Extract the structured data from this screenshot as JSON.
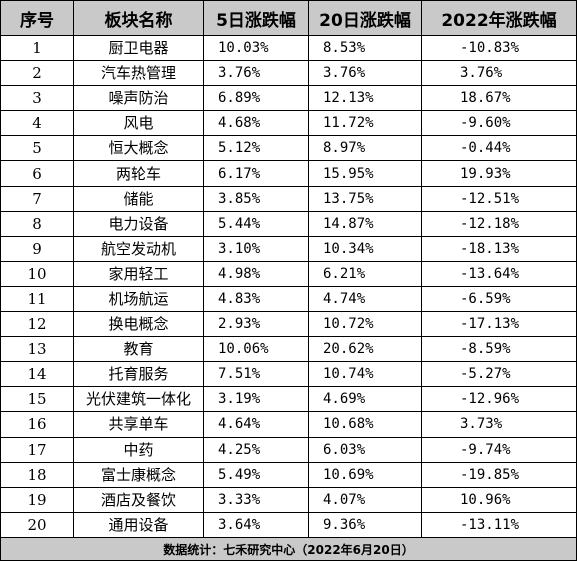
{
  "headers": [
    "序号",
    "板块名称",
    "5日涨跌幅",
    "20日涨跌幅",
    "2022年涨跌幅"
  ],
  "rows": [
    {
      "idx": "1",
      "name": "厨卫电器",
      "d5": "10.03%",
      "d20": "8.53%",
      "y2022": "-10.83%"
    },
    {
      "idx": "2",
      "name": "汽车热管理",
      "d5": "3.76%",
      "d20": "3.76%",
      "y2022": "3.76%"
    },
    {
      "idx": "3",
      "name": "噪声防治",
      "d5": "6.89%",
      "d20": "12.13%",
      "y2022": "18.67%"
    },
    {
      "idx": "4",
      "name": "风电",
      "d5": "4.68%",
      "d20": "11.72%",
      "y2022": "-9.60%"
    },
    {
      "idx": "5",
      "name": "恒大概念",
      "d5": "5.12%",
      "d20": "8.97%",
      "y2022": "-0.44%"
    },
    {
      "idx": "6",
      "name": "两轮车",
      "d5": "6.17%",
      "d20": "15.95%",
      "y2022": "19.93%"
    },
    {
      "idx": "7",
      "name": "储能",
      "d5": "3.85%",
      "d20": "13.75%",
      "y2022": "-12.51%"
    },
    {
      "idx": "8",
      "name": "电力设备",
      "d5": "5.44%",
      "d20": "14.87%",
      "y2022": "-12.18%"
    },
    {
      "idx": "9",
      "name": "航空发动机",
      "d5": "3.10%",
      "d20": "10.34%",
      "y2022": "-18.13%"
    },
    {
      "idx": "10",
      "name": "家用轻工",
      "d5": "4.98%",
      "d20": "6.21%",
      "y2022": "-13.64%"
    },
    {
      "idx": "11",
      "name": "机场航运",
      "d5": "4.83%",
      "d20": "4.74%",
      "y2022": "-6.59%"
    },
    {
      "idx": "12",
      "name": "换电概念",
      "d5": "2.93%",
      "d20": "10.72%",
      "y2022": "-17.13%"
    },
    {
      "idx": "13",
      "name": "教育",
      "d5": "10.06%",
      "d20": "20.62%",
      "y2022": "-8.59%"
    },
    {
      "idx": "14",
      "name": "托育服务",
      "d5": "7.51%",
      "d20": "10.74%",
      "y2022": "-5.27%"
    },
    {
      "idx": "15",
      "name": "光伏建筑一体化",
      "d5": "3.19%",
      "d20": "4.69%",
      "y2022": "-12.96%"
    },
    {
      "idx": "16",
      "name": "共享单车",
      "d5": "4.64%",
      "d20": "10.68%",
      "y2022": "3.73%"
    },
    {
      "idx": "17",
      "name": "中药",
      "d5": "4.25%",
      "d20": "6.03%",
      "y2022": "-9.74%"
    },
    {
      "idx": "18",
      "name": "富士康概念",
      "d5": "5.49%",
      "d20": "10.69%",
      "y2022": "-19.85%"
    },
    {
      "idx": "19",
      "name": "酒店及餐饮",
      "d5": "3.33%",
      "d20": "4.07%",
      "y2022": "10.96%"
    },
    {
      "idx": "20",
      "name": "通用设备",
      "d5": "3.64%",
      "d20": "9.36%",
      "y2022": "-13.11%"
    }
  ],
  "footer": "数据统计：七禾研究中心（2022年6月20日）",
  "colors": {
    "header_bg": "#c9c9c9",
    "border": "#000000"
  }
}
